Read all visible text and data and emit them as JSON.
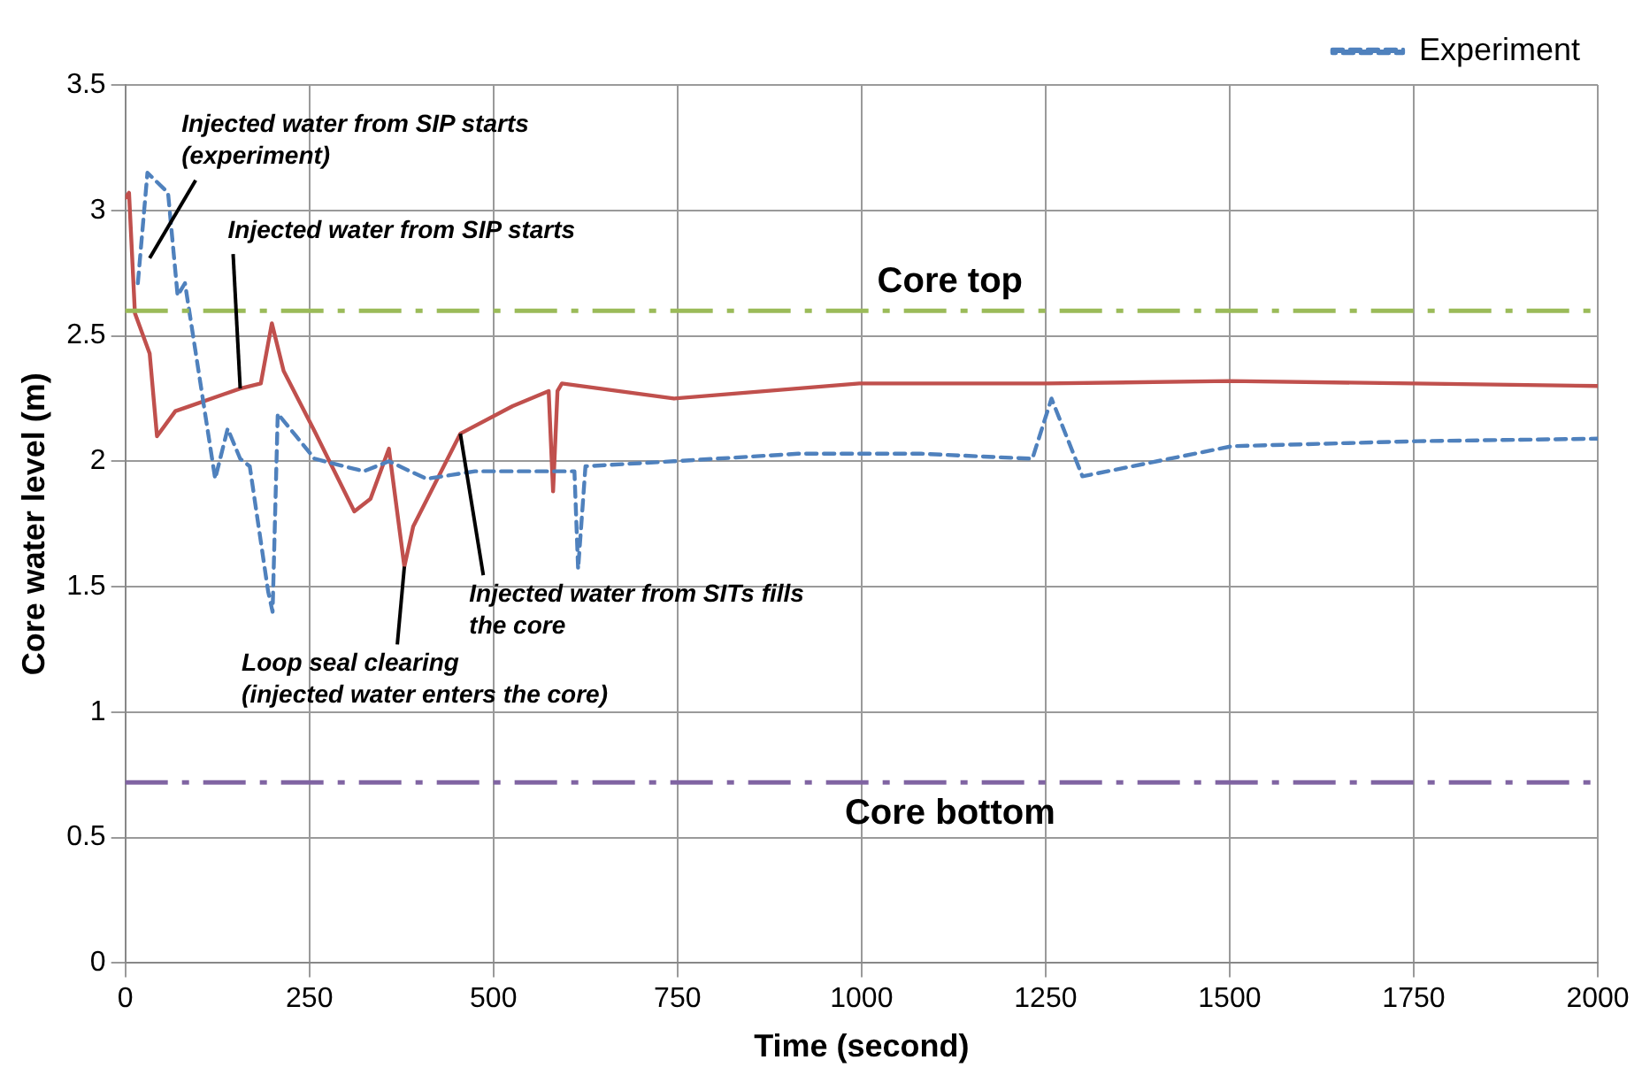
{
  "chart_data": {
    "type": "line",
    "xlabel": "Time (second)",
    "ylabel": "Core water level (m)",
    "xlim": [
      0,
      2000
    ],
    "xticks": [
      0,
      250,
      500,
      750,
      1000,
      1250,
      1500,
      1750,
      2000
    ],
    "ylim": [
      0,
      3.5
    ],
    "yticks": [
      0,
      0.5,
      1,
      1.5,
      2,
      2.5,
      3,
      3.5
    ],
    "grid": true,
    "legend": "top right",
    "marker": "none",
    "series": [
      {
        "name": "Experiment",
        "color": "#4f81bd",
        "line_style": "dashed",
        "x": [
          17,
          30,
          58,
          71,
          81,
          122,
          139,
          156,
          169,
          194,
          200,
          207,
          232,
          257,
          324,
          358,
          409,
          475,
          526,
          610,
          615,
          625,
          745,
          914,
          1081,
          1232,
          1258,
          1300,
          1503,
          1755,
          2000
        ],
        "values": [
          2.71,
          3.15,
          3.07,
          2.66,
          2.71,
          1.93,
          2.13,
          2.01,
          1.98,
          1.48,
          1.4,
          2.19,
          2.1,
          2.01,
          1.96,
          2.0,
          1.93,
          1.96,
          1.96,
          1.96,
          1.57,
          1.98,
          2.0,
          2.03,
          2.03,
          2.01,
          2.25,
          1.94,
          2.06,
          2.08,
          2.09
        ]
      },
      {
        "color": "#c0504d",
        "line_style": "solid",
        "x": [
          0,
          5,
          13,
          33,
          43,
          68,
          88,
          156,
          184,
          199,
          215,
          257,
          311,
          333,
          358,
          379,
          391,
          455,
          526,
          575,
          581,
          587,
          593,
          745,
          997,
          1250,
          1500,
          1750,
          2000
        ],
        "values": [
          3.05,
          3.07,
          2.59,
          2.43,
          2.1,
          2.2,
          2.22,
          2.29,
          2.31,
          2.55,
          2.36,
          2.12,
          1.8,
          1.85,
          2.05,
          1.58,
          1.74,
          2.11,
          2.22,
          2.28,
          1.88,
          2.28,
          2.31,
          2.25,
          2.31,
          2.31,
          2.32,
          2.31,
          2.3
        ]
      }
    ],
    "ref_lines": [
      {
        "axis": "y",
        "value": 2.6,
        "label": "Core top",
        "color": "#9bbb59",
        "line_style": "dashdot"
      },
      {
        "axis": "y",
        "value": 0.72,
        "label": "Core bottom",
        "color": "#8064a2",
        "line_style": "dashdot"
      }
    ],
    "annotations": [
      {
        "text": "Injected water from SIP starts\n(experiment)",
        "x": 33,
        "y": 2.81
      },
      {
        "text": "Injected water from SIP starts",
        "x": 156,
        "y": 2.29
      },
      {
        "text": "Loop seal clearing\n(injected water enters the core)",
        "x": 379,
        "y": 1.58
      },
      {
        "text": "Injected water from SITs fills\nthe core",
        "x": 455,
        "y": 2.11
      }
    ]
  }
}
